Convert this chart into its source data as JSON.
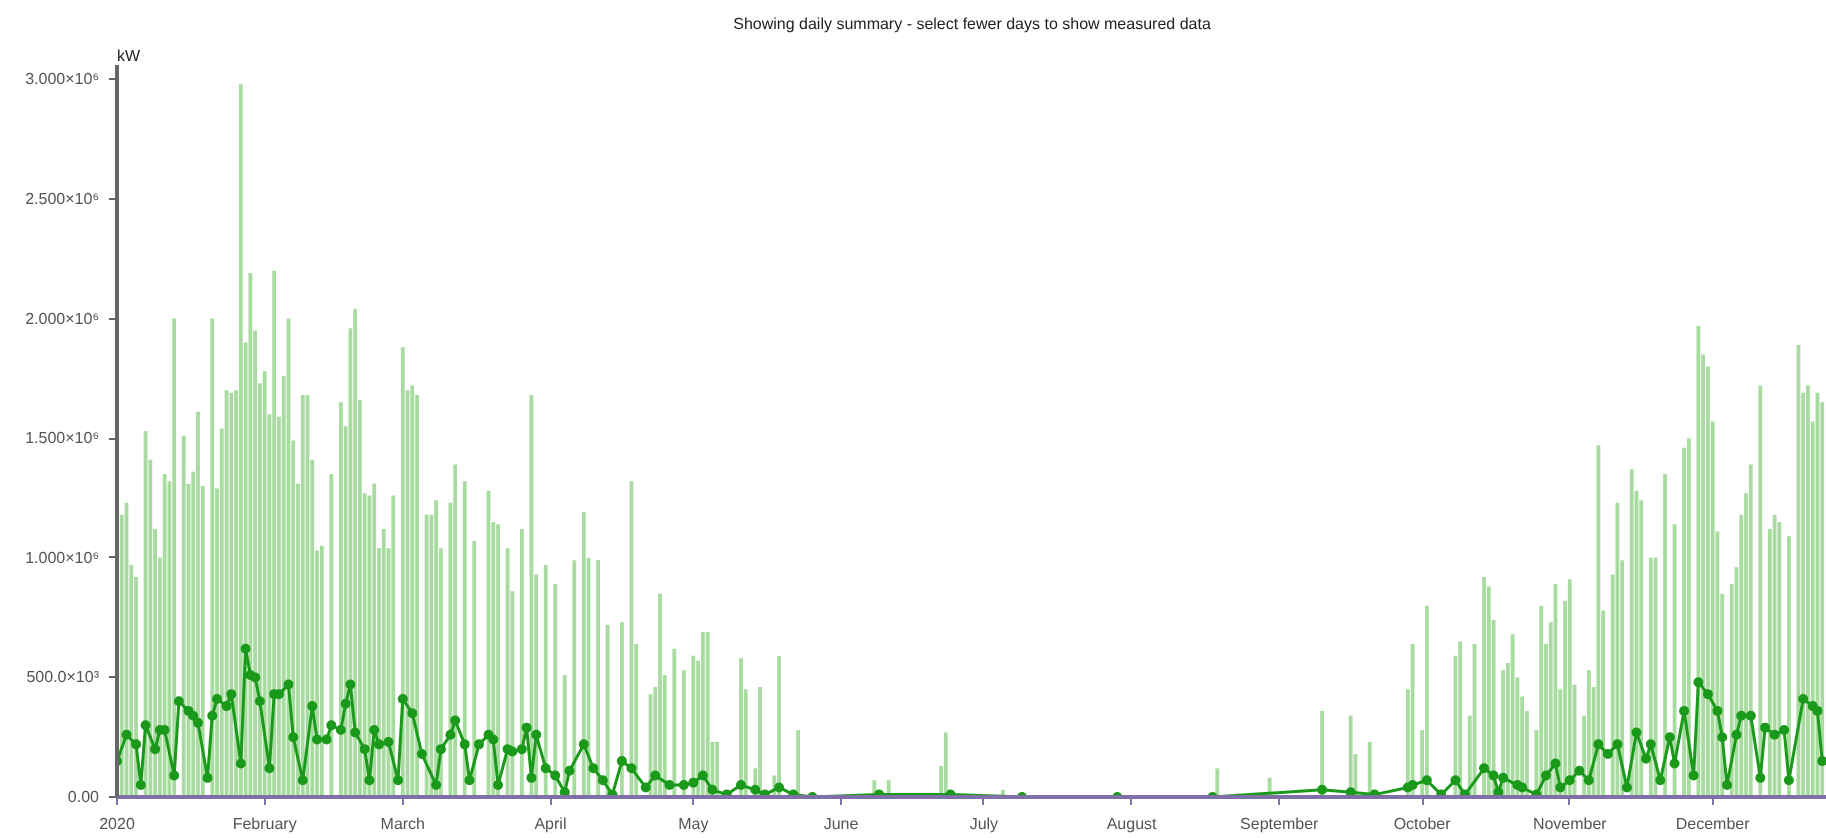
{
  "chart_data": {
    "type": "bar",
    "title": "Showing daily summary - select fewer days to show measured data",
    "ylabel": "kW",
    "xlim": [
      "2020-01-01",
      "2020-12-25"
    ],
    "ylim": [
      0,
      3060000
    ],
    "xticks": [
      {
        "value": "2020-01-01",
        "label": "2020"
      },
      {
        "value": "2020-02-01",
        "label": "February"
      },
      {
        "value": "2020-03-01",
        "label": "March"
      },
      {
        "value": "2020-04-01",
        "label": "April"
      },
      {
        "value": "2020-05-01",
        "label": "May"
      },
      {
        "value": "2020-06-01",
        "label": "June"
      },
      {
        "value": "2020-07-01",
        "label": "July"
      },
      {
        "value": "2020-08-01",
        "label": "August"
      },
      {
        "value": "2020-09-01",
        "label": "September"
      },
      {
        "value": "2020-10-01",
        "label": "October"
      },
      {
        "value": "2020-11-01",
        "label": "November"
      },
      {
        "value": "2020-12-01",
        "label": "December"
      }
    ],
    "yticks": [
      {
        "value": 0,
        "label": "0.00"
      },
      {
        "value": 500000,
        "label": "500.0×10³"
      },
      {
        "value": 1000000,
        "label": "1.000×10⁶"
      },
      {
        "value": 1500000,
        "label": "1.500×10⁶"
      },
      {
        "value": 2000000,
        "label": "2.000×10⁶"
      },
      {
        "value": 2500000,
        "label": "2.500×10⁶"
      },
      {
        "value": 3000000,
        "label": "3.000×10⁶"
      }
    ],
    "grid": false,
    "series": [
      {
        "color": "#a8dba0",
        "x": [
          "2020-01-02",
          "2020-01-03",
          "2020-01-04",
          "2020-01-05",
          "2020-01-07",
          "2020-01-08",
          "2020-01-09",
          "2020-01-10",
          "2020-01-11",
          "2020-01-12",
          "2020-01-13",
          "2020-01-15",
          "2020-01-16",
          "2020-01-17",
          "2020-01-18",
          "2020-01-19",
          "2020-01-21",
          "2020-01-22",
          "2020-01-23",
          "2020-01-24",
          "2020-01-25",
          "2020-01-26",
          "2020-01-27",
          "2020-01-28",
          "2020-01-29",
          "2020-01-30",
          "2020-01-31",
          "2020-02-01",
          "2020-02-02",
          "2020-02-03",
          "2020-02-04",
          "2020-02-05",
          "2020-02-06",
          "2020-02-07",
          "2020-02-08",
          "2020-02-09",
          "2020-02-10",
          "2020-02-11",
          "2020-02-12",
          "2020-02-13",
          "2020-02-15",
          "2020-02-17",
          "2020-02-18",
          "2020-02-19",
          "2020-02-20",
          "2020-02-21",
          "2020-02-22",
          "2020-02-23",
          "2020-02-24",
          "2020-02-25",
          "2020-02-26",
          "2020-02-27",
          "2020-02-28",
          "2020-03-01",
          "2020-03-02",
          "2020-03-03",
          "2020-03-04",
          "2020-03-06",
          "2020-03-07",
          "2020-03-08",
          "2020-03-09",
          "2020-03-11",
          "2020-03-12",
          "2020-03-14",
          "2020-03-16",
          "2020-03-19",
          "2020-03-20",
          "2020-03-21",
          "2020-03-23",
          "2020-03-24",
          "2020-03-26",
          "2020-03-28",
          "2020-03-29",
          "2020-03-31",
          "2020-04-02",
          "2020-04-04",
          "2020-04-06",
          "2020-04-08",
          "2020-04-09",
          "2020-04-11",
          "2020-04-13",
          "2020-04-16",
          "2020-04-18",
          "2020-04-19",
          "2020-04-22",
          "2020-04-23",
          "2020-04-24",
          "2020-04-25",
          "2020-04-27",
          "2020-04-29",
          "2020-05-01",
          "2020-05-02",
          "2020-05-03",
          "2020-05-04",
          "2020-05-05",
          "2020-05-06",
          "2020-05-11",
          "2020-05-12",
          "2020-05-14",
          "2020-05-15",
          "2020-05-18",
          "2020-05-19",
          "2020-05-23",
          "2020-06-08",
          "2020-06-11",
          "2020-06-22",
          "2020-06-23",
          "2020-07-05",
          "2020-08-19",
          "2020-08-30",
          "2020-09-10",
          "2020-09-16",
          "2020-09-17",
          "2020-09-20",
          "2020-09-28",
          "2020-09-29",
          "2020-10-01",
          "2020-10-02",
          "2020-10-08",
          "2020-10-09",
          "2020-10-11",
          "2020-10-12",
          "2020-10-14",
          "2020-10-15",
          "2020-10-16",
          "2020-10-18",
          "2020-10-19",
          "2020-10-20",
          "2020-10-21",
          "2020-10-22",
          "2020-10-23",
          "2020-10-25",
          "2020-10-26",
          "2020-10-27",
          "2020-10-28",
          "2020-10-29",
          "2020-10-30",
          "2020-10-31",
          "2020-11-01",
          "2020-11-02",
          "2020-11-04",
          "2020-11-05",
          "2020-11-06",
          "2020-11-07",
          "2020-11-08",
          "2020-11-10",
          "2020-11-11",
          "2020-11-12",
          "2020-11-14",
          "2020-11-15",
          "2020-11-16",
          "2020-11-18",
          "2020-11-19",
          "2020-11-21",
          "2020-11-23",
          "2020-11-25",
          "2020-11-26",
          "2020-11-28",
          "2020-11-29",
          "2020-11-30",
          "2020-12-01",
          "2020-12-02",
          "2020-12-03",
          "2020-12-05",
          "2020-12-06",
          "2020-12-07",
          "2020-12-08",
          "2020-12-09",
          "2020-12-11",
          "2020-12-13",
          "2020-12-14",
          "2020-12-15",
          "2020-12-17",
          "2020-12-19",
          "2020-12-20",
          "2020-12-21",
          "2020-12-22",
          "2020-12-23",
          "2020-12-24"
        ],
        "values": [
          1180000,
          1230000,
          970000,
          920000,
          1530000,
          1410000,
          1120000,
          1000000,
          1350000,
          1320000,
          2000000,
          1510000,
          1310000,
          1360000,
          1610000,
          1300000,
          2000000,
          1290000,
          1540000,
          1700000,
          1690000,
          1700000,
          2980000,
          1900000,
          2190000,
          1950000,
          1730000,
          1780000,
          1600000,
          2200000,
          1590000,
          1760000,
          2000000,
          1490000,
          1310000,
          1680000,
          1680000,
          1410000,
          1030000,
          1050000,
          1350000,
          1650000,
          1550000,
          1960000,
          2040000,
          1660000,
          1270000,
          1260000,
          1310000,
          1040000,
          1120000,
          1040000,
          1260000,
          1880000,
          1700000,
          1720000,
          1680000,
          1180000,
          1180000,
          1240000,
          1040000,
          1230000,
          1390000,
          1320000,
          1070000,
          1280000,
          1150000,
          1140000,
          1040000,
          860000,
          1120000,
          1680000,
          930000,
          970000,
          890000,
          510000,
          990000,
          1190000,
          1000000,
          990000,
          720000,
          730000,
          1320000,
          640000,
          430000,
          460000,
          850000,
          510000,
          620000,
          530000,
          590000,
          570000,
          690000,
          690000,
          230000,
          230000,
          580000,
          450000,
          120000,
          460000,
          90000,
          590000,
          280000,
          70000,
          70000,
          130000,
          270000,
          30000,
          120000,
          80000,
          360000,
          340000,
          180000,
          230000,
          450000,
          640000,
          280000,
          800000,
          590000,
          650000,
          340000,
          640000,
          920000,
          880000,
          740000,
          530000,
          560000,
          680000,
          500000,
          420000,
          360000,
          280000,
          800000,
          640000,
          730000,
          890000,
          450000,
          820000,
          910000,
          470000,
          340000,
          530000,
          460000,
          1470000,
          780000,
          930000,
          1230000,
          990000,
          1370000,
          1280000,
          1240000,
          1000000,
          1000000,
          1350000,
          1140000,
          1460000,
          1500000,
          1970000,
          1850000,
          1800000,
          1570000,
          1110000,
          850000,
          890000,
          960000,
          1180000,
          1270000,
          1390000,
          1720000,
          1120000,
          1180000,
          1150000,
          1090000,
          1890000,
          1690000,
          1720000,
          1570000,
          1690000,
          1650000
        ]
      },
      {
        "type": "line",
        "color": "#1a991a",
        "marker": "circle",
        "line_style": "solid",
        "x": [
          "2020-01-01",
          "2020-01-03",
          "2020-01-05",
          "2020-01-06",
          "2020-01-07",
          "2020-01-09",
          "2020-01-10",
          "2020-01-11",
          "2020-01-13",
          "2020-01-14",
          "2020-01-16",
          "2020-01-17",
          "2020-01-18",
          "2020-01-20",
          "2020-01-21",
          "2020-01-22",
          "2020-01-24",
          "2020-01-25",
          "2020-01-27",
          "2020-01-28",
          "2020-01-29",
          "2020-01-30",
          "2020-01-31",
          "2020-02-02",
          "2020-02-03",
          "2020-02-04",
          "2020-02-06",
          "2020-02-07",
          "2020-02-09",
          "2020-02-11",
          "2020-02-12",
          "2020-02-14",
          "2020-02-15",
          "2020-02-17",
          "2020-02-18",
          "2020-02-19",
          "2020-02-20",
          "2020-02-22",
          "2020-02-23",
          "2020-02-24",
          "2020-02-25",
          "2020-02-27",
          "2020-02-29",
          "2020-03-01",
          "2020-03-03",
          "2020-03-05",
          "2020-03-08",
          "2020-03-09",
          "2020-03-11",
          "2020-03-12",
          "2020-03-14",
          "2020-03-15",
          "2020-03-17",
          "2020-03-19",
          "2020-03-20",
          "2020-03-21",
          "2020-03-23",
          "2020-03-24",
          "2020-03-26",
          "2020-03-27",
          "2020-03-28",
          "2020-03-29",
          "2020-03-31",
          "2020-04-02",
          "2020-04-04",
          "2020-04-05",
          "2020-04-08",
          "2020-04-10",
          "2020-04-12",
          "2020-04-14",
          "2020-04-16",
          "2020-04-18",
          "2020-04-21",
          "2020-04-23",
          "2020-04-26",
          "2020-04-29",
          "2020-05-01",
          "2020-05-03",
          "2020-05-05",
          "2020-05-08",
          "2020-05-11",
          "2020-05-14",
          "2020-05-16",
          "2020-05-19",
          "2020-05-22",
          "2020-05-26",
          "2020-06-09",
          "2020-06-24",
          "2020-07-09",
          "2020-07-29",
          "2020-08-18",
          "2020-09-10",
          "2020-09-16",
          "2020-09-21",
          "2020-09-28",
          "2020-09-29",
          "2020-10-02",
          "2020-10-05",
          "2020-10-08",
          "2020-10-10",
          "2020-10-14",
          "2020-10-16",
          "2020-10-17",
          "2020-10-18",
          "2020-10-21",
          "2020-10-22",
          "2020-10-25",
          "2020-10-27",
          "2020-10-29",
          "2020-10-30",
          "2020-11-01",
          "2020-11-03",
          "2020-11-05",
          "2020-11-07",
          "2020-11-09",
          "2020-11-11",
          "2020-11-13",
          "2020-11-15",
          "2020-11-17",
          "2020-11-18",
          "2020-11-20",
          "2020-11-22",
          "2020-11-23",
          "2020-11-25",
          "2020-11-27",
          "2020-11-28",
          "2020-11-30",
          "2020-12-02",
          "2020-12-03",
          "2020-12-04",
          "2020-12-06",
          "2020-12-07",
          "2020-12-09",
          "2020-12-11",
          "2020-12-12",
          "2020-12-14",
          "2020-12-16",
          "2020-12-17",
          "2020-12-20",
          "2020-12-22",
          "2020-12-23",
          "2020-12-24"
        ],
        "values": [
          150000,
          260000,
          220000,
          50000,
          300000,
          200000,
          280000,
          280000,
          90000,
          400000,
          360000,
          340000,
          310000,
          80000,
          340000,
          410000,
          380000,
          430000,
          140000,
          620000,
          510000,
          500000,
          400000,
          120000,
          430000,
          430000,
          470000,
          250000,
          70000,
          380000,
          240000,
          240000,
          300000,
          280000,
          390000,
          470000,
          270000,
          200000,
          70000,
          280000,
          220000,
          230000,
          70000,
          410000,
          350000,
          180000,
          50000,
          200000,
          260000,
          320000,
          220000,
          70000,
          220000,
          260000,
          240000,
          50000,
          200000,
          190000,
          200000,
          290000,
          80000,
          260000,
          120000,
          90000,
          20000,
          110000,
          220000,
          120000,
          70000,
          10000,
          150000,
          120000,
          40000,
          90000,
          50000,
          50000,
          60000,
          90000,
          30000,
          10000,
          50000,
          30000,
          10000,
          40000,
          10000,
          0,
          10000,
          10000,
          0,
          0,
          0,
          30000,
          20000,
          10000,
          40000,
          50000,
          70000,
          10000,
          70000,
          10000,
          120000,
          90000,
          20000,
          80000,
          50000,
          40000,
          10000,
          90000,
          140000,
          40000,
          70000,
          110000,
          70000,
          220000,
          180000,
          220000,
          40000,
          270000,
          160000,
          220000,
          70000,
          250000,
          140000,
          360000,
          90000,
          480000,
          430000,
          360000,
          250000,
          50000,
          260000,
          340000,
          340000,
          80000,
          290000,
          260000,
          280000,
          70000,
          410000,
          380000,
          360000,
          150000
        ]
      }
    ]
  }
}
